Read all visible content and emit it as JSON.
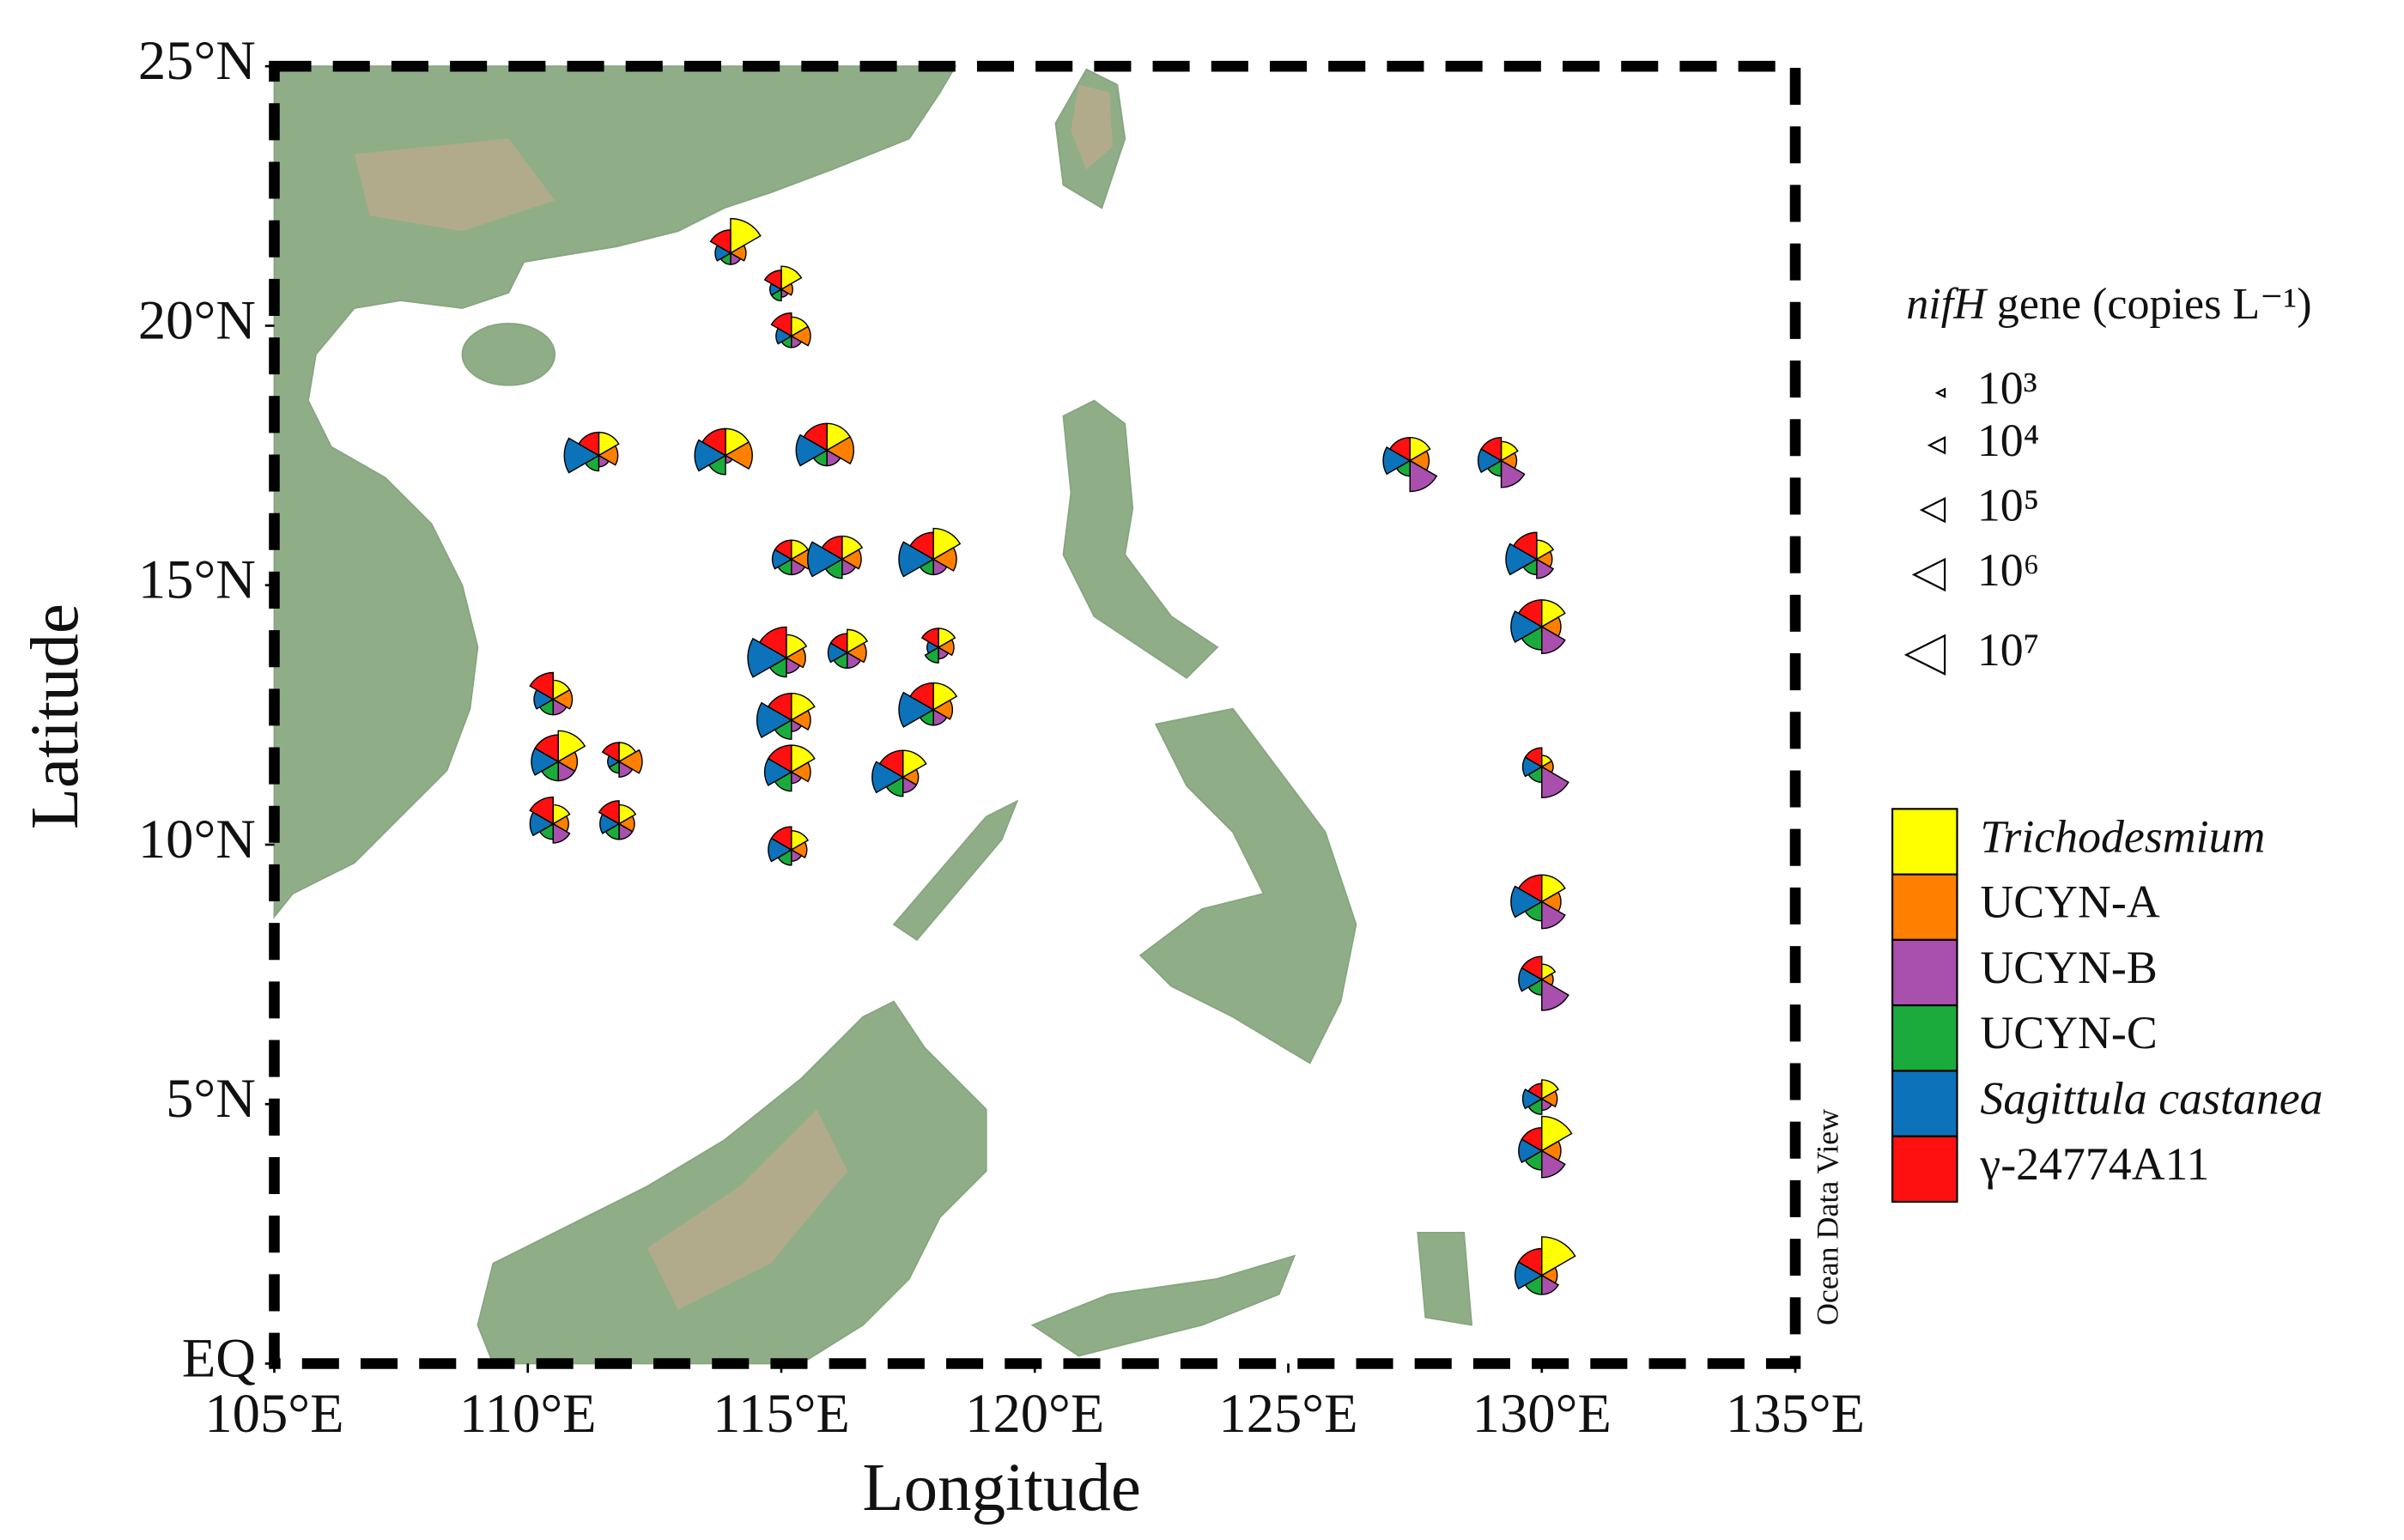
{
  "chart_data": {
    "type": "rose-map",
    "x_label": "Longitude",
    "y_label": "Latitude",
    "watermark": "Ocean Data View",
    "xlim": [
      105,
      135
    ],
    "ylim": [
      0,
      25
    ],
    "xticks": [
      {
        "value": 105,
        "label": "105°E"
      },
      {
        "value": 110,
        "label": "110°E"
      },
      {
        "value": 115,
        "label": "115°E"
      },
      {
        "value": 120,
        "label": "120°E"
      },
      {
        "value": 125,
        "label": "125°E"
      },
      {
        "value": 130,
        "label": "130°E"
      },
      {
        "value": 135,
        "label": "135°E"
      }
    ],
    "yticks": [
      {
        "value": 0,
        "label": "EQ"
      },
      {
        "value": 5,
        "label": "5°N"
      },
      {
        "value": 10,
        "label": "10°N"
      },
      {
        "value": 15,
        "label": "15°N"
      },
      {
        "value": 20,
        "label": "20°N"
      },
      {
        "value": 25,
        "label": "25°N"
      }
    ],
    "series": [
      {
        "name": "Trichodesmium",
        "color": "#ffff00",
        "italic": true
      },
      {
        "name": "UCYN-A",
        "color": "#ff7f00",
        "italic": false
      },
      {
        "name": "UCYN-B",
        "color": "#a94fae",
        "italic": false
      },
      {
        "name": "UCYN-C",
        "color": "#1aab3c",
        "italic": false
      },
      {
        "name": "Sagittula castanea",
        "color": "#0c72ba",
        "italic": true
      },
      {
        "name": "γ-24774A11",
        "color": "#ff1010",
        "italic": false
      }
    ],
    "size_legend": {
      "title_italic": "nifH",
      "title": "gene (copies L⁻¹)",
      "entries": [
        {
          "value": 1000,
          "label": "10³"
        },
        {
          "value": 10000,
          "label": "10⁴"
        },
        {
          "value": 100000,
          "label": "10⁵"
        },
        {
          "value": 1000000,
          "label": "10⁶"
        },
        {
          "value": 10000000,
          "label": "10⁷"
        }
      ]
    },
    "stations": [
      {
        "lon": 114.0,
        "lat": 21.4,
        "values": [
          3000000.0,
          10000.0,
          3000.0,
          3000.0,
          10000.0,
          100000.0
        ]
      },
      {
        "lon": 115.0,
        "lat": 20.7,
        "values": [
          100000.0,
          3000.0,
          1000.0,
          3000.0,
          3000.0,
          30000.0
        ]
      },
      {
        "lon": 115.2,
        "lat": 19.8,
        "values": [
          30000.0,
          30000.0,
          3000.0,
          3000.0,
          10000.0,
          100000.0
        ]
      },
      {
        "lon": 111.4,
        "lat": 17.5,
        "values": [
          100000.0,
          30000.0,
          3000.0,
          10000.0,
          3000000.0,
          100000.0
        ]
      },
      {
        "lon": 113.9,
        "lat": 17.5,
        "values": [
          300000.0,
          300000.0,
          1000.0,
          30000.0,
          1000000.0,
          300000.0
        ]
      },
      {
        "lon": 115.9,
        "lat": 17.6,
        "values": [
          300000.0,
          300000.0,
          10000.0,
          10000.0,
          1000000.0,
          300000.0
        ]
      },
      {
        "lon": 115.2,
        "lat": 15.5,
        "values": [
          30000.0,
          30000.0,
          10000.0,
          10000.0,
          30000.0,
          30000.0
        ]
      },
      {
        "lon": 116.2,
        "lat": 15.5,
        "values": [
          100000.0,
          30000.0,
          10000.0,
          30000.0,
          3000000.0,
          100000.0
        ]
      },
      {
        "lon": 118.0,
        "lat": 15.5,
        "values": [
          1000000.0,
          100000.0,
          10000.0,
          10000.0,
          3000000.0,
          300000.0
        ]
      },
      {
        "lon": 115.1,
        "lat": 13.6,
        "values": [
          100000.0,
          30000.0,
          10000.0,
          30000.0,
          10000000.0,
          1000000.0
        ]
      },
      {
        "lon": 116.3,
        "lat": 13.7,
        "values": [
          100000.0,
          30000.0,
          10000.0,
          10000.0,
          30000.0,
          30000.0
        ]
      },
      {
        "lon": 118.1,
        "lat": 13.8,
        "values": [
          30000.0,
          10000.0,
          3000.0,
          10000.0,
          3000.0,
          30000.0
        ]
      },
      {
        "lon": 110.5,
        "lat": 12.8,
        "values": [
          30000.0,
          30000.0,
          10000.0,
          10000.0,
          30000.0,
          300000.0
        ]
      },
      {
        "lon": 115.2,
        "lat": 12.4,
        "values": [
          300000.0,
          30000.0,
          3000.0,
          30000.0,
          3000000.0,
          300000.0
        ]
      },
      {
        "lon": 118.0,
        "lat": 12.6,
        "values": [
          300000.0,
          30000.0,
          10000.0,
          10000.0,
          3000000.0,
          300000.0
        ]
      },
      {
        "lon": 110.6,
        "lat": 11.6,
        "values": [
          1000000.0,
          30000.0,
          30000.0,
          30000.0,
          300000.0,
          300000.0
        ]
      },
      {
        "lon": 111.8,
        "lat": 11.6,
        "values": [
          30000.0,
          100000.0,
          10000.0,
          3000.0,
          3000.0,
          30000.0
        ]
      },
      {
        "lon": 115.2,
        "lat": 11.4,
        "values": [
          300000.0,
          30000.0,
          3000.0,
          30000.0,
          300000.0,
          300000.0
        ]
      },
      {
        "lon": 117.4,
        "lat": 11.3,
        "values": [
          300000.0,
          10000.0,
          10000.0,
          30000.0,
          1000000.0,
          300000.0
        ]
      },
      {
        "lon": 110.5,
        "lat": 10.4,
        "values": [
          30000.0,
          10000.0,
          30000.0,
          10000.0,
          100000.0,
          300000.0
        ]
      },
      {
        "lon": 111.8,
        "lat": 10.4,
        "values": [
          30000.0,
          10000.0,
          10000.0,
          10000.0,
          30000.0,
          100000.0
        ]
      },
      {
        "lon": 115.2,
        "lat": 9.9,
        "values": [
          30000.0,
          10000.0,
          3000.0,
          10000.0,
          100000.0,
          100000.0
        ]
      },
      {
        "lon": 127.4,
        "lat": 17.4,
        "values": [
          100000.0,
          30000.0,
          1000000.0,
          10000.0,
          300000.0,
          100000.0
        ]
      },
      {
        "lon": 129.2,
        "lat": 17.4,
        "values": [
          30000.0,
          10000.0,
          300000.0,
          10000.0,
          100000.0,
          100000.0
        ]
      },
      {
        "lon": 129.9,
        "lat": 15.5,
        "values": [
          30000.0,
          10000.0,
          30000.0,
          10000.0,
          1000000.0,
          300000.0
        ]
      },
      {
        "lon": 130.0,
        "lat": 14.2,
        "values": [
          300000.0,
          30000.0,
          300000.0,
          100000.0,
          1000000.0,
          300000.0
        ]
      },
      {
        "lon": 130.0,
        "lat": 11.5,
        "values": [
          3000.0,
          3000.0,
          1000000.0,
          10000.0,
          30000.0,
          30000.0
        ]
      },
      {
        "lon": 130.0,
        "lat": 8.9,
        "values": [
          300000.0,
          30000.0,
          300000.0,
          30000.0,
          1000000.0,
          300000.0
        ]
      },
      {
        "lon": 130.0,
        "lat": 7.4,
        "values": [
          10000.0,
          3000.0,
          1000000.0,
          10000.0,
          100000.0,
          100000.0
        ]
      },
      {
        "lon": 130.0,
        "lat": 5.1,
        "values": [
          30000.0,
          10000.0,
          3000.0,
          10000.0,
          30000.0,
          10000.0
        ]
      },
      {
        "lon": 130.0,
        "lat": 4.1,
        "values": [
          3000000.0,
          30000.0,
          300000.0,
          30000.0,
          100000.0,
          100000.0
        ]
      },
      {
        "lon": 130.0,
        "lat": 1.7,
        "values": [
          10000000.0,
          10000.0,
          30000.0,
          30000.0,
          300000.0,
          300000.0
        ]
      }
    ]
  }
}
